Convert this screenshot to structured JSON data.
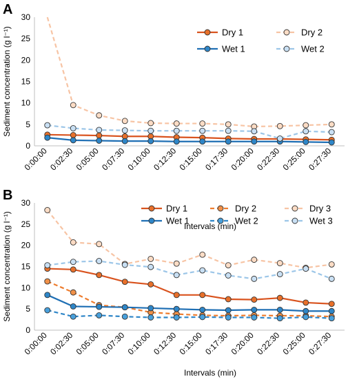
{
  "chart_data": [
    {
      "panel": "A",
      "type": "line",
      "categories": [
        "0:00:00",
        "0:02:30",
        "0:05:00",
        "0:07:30",
        "0:10:00",
        "0:12:30",
        "0:15:00",
        "0:17:30",
        "0:20:00",
        "0:22:30",
        "0:25:00",
        "0:27:30"
      ],
      "ylabel": "Sediment concentration (g l⁻¹)",
      "xlabel": "Intervals (min)",
      "ylim": [
        0,
        30
      ],
      "yticks": [
        0,
        5,
        10,
        15,
        20,
        25,
        30
      ],
      "grid": false,
      "legend_position": "top-right",
      "series": [
        {
          "name": "Dry 1",
          "color": "#d9531e",
          "dash": "solid",
          "marker_fill": "#e8702a",
          "values": [
            2.6,
            2.5,
            2.4,
            2.2,
            2.2,
            2.0,
            1.9,
            1.7,
            1.6,
            1.6,
            1.5,
            1.4
          ]
        },
        {
          "name": "Dry 2",
          "color": "#f7c4a4",
          "dash": "dashed",
          "marker_fill": "#fcdcc5",
          "values": [
            30.0,
            9.5,
            7.1,
            5.8,
            5.3,
            5.2,
            5.2,
            5.0,
            4.5,
            4.6,
            4.8,
            5.0
          ]
        },
        {
          "name": "Wet 1",
          "color": "#1f6fb4",
          "dash": "solid",
          "marker_fill": "#2e86c8",
          "values": [
            1.9,
            1.3,
            1.2,
            1.1,
            1.1,
            1.0,
            1.0,
            1.0,
            1.0,
            1.0,
            0.9,
            0.8
          ]
        },
        {
          "name": "Wet 2",
          "color": "#9cc6e8",
          "dash": "dashed",
          "marker_fill": "#c9e0f4",
          "values": [
            4.8,
            4.1,
            3.7,
            3.6,
            3.5,
            3.5,
            3.5,
            3.5,
            3.4,
            1.7,
            3.4,
            3.2
          ]
        }
      ],
      "marker_first_point": {
        "Dry 2": false
      }
    },
    {
      "panel": "B",
      "type": "line",
      "categories": [
        "0:00:00",
        "0:02:30",
        "0:05:00",
        "0:07:30",
        "0:10:00",
        "0:12:30",
        "0:15:00",
        "0:17:30",
        "0:20:00",
        "0:22:30",
        "0:25:00",
        "0:27:30"
      ],
      "ylabel": "Sediment concentration (g l⁻¹)",
      "xlabel": "Intervals (min)",
      "ylim": [
        0,
        30
      ],
      "yticks": [
        0,
        5,
        10,
        15,
        20,
        25,
        30
      ],
      "grid": false,
      "legend_position": "top-right",
      "series": [
        {
          "name": "Dry 1",
          "color": "#d9531e",
          "dash": "solid",
          "marker_fill": "#e8702a",
          "values": [
            14.5,
            14.3,
            13.0,
            11.4,
            10.8,
            8.3,
            8.3,
            7.3,
            7.2,
            7.6,
            6.5,
            6.2
          ]
        },
        {
          "name": "Dry 2",
          "color": "#ee7d2f",
          "dash": "dashed",
          "marker_fill": "#f09048",
          "values": [
            11.5,
            8.9,
            5.9,
            5.4,
            4.2,
            3.8,
            3.5,
            3.4,
            3.5,
            3.4,
            3.4,
            3.2
          ]
        },
        {
          "name": "Dry 3",
          "color": "#f7c4a4",
          "dash": "dashed",
          "marker_fill": "#fcdcc5",
          "values": [
            28.3,
            20.7,
            20.3,
            15.6,
            16.8,
            15.7,
            17.8,
            15.3,
            16.6,
            15.8,
            14.7,
            15.5
          ]
        },
        {
          "name": "Wet 1",
          "color": "#1f6fb4",
          "dash": "solid",
          "marker_fill": "#2e86c8",
          "values": [
            8.3,
            5.6,
            5.5,
            5.4,
            5.2,
            5.0,
            4.8,
            4.7,
            4.8,
            4.8,
            4.5,
            4.5
          ]
        },
        {
          "name": "Wet 2",
          "color": "#2f86c8",
          "dash": "dashed",
          "marker_fill": "#48a0dc",
          "values": [
            4.7,
            3.2,
            3.5,
            3.2,
            3.0,
            3.0,
            3.1,
            3.0,
            3.0,
            2.8,
            3.1,
            2.8
          ]
        },
        {
          "name": "Wet 3",
          "color": "#9cc6e8",
          "dash": "dashed",
          "marker_fill": "#c9e0f4",
          "values": [
            15.3,
            16.1,
            16.3,
            15.4,
            14.9,
            13.0,
            14.1,
            12.9,
            12.1,
            13.2,
            14.5,
            12.1
          ]
        }
      ]
    }
  ]
}
